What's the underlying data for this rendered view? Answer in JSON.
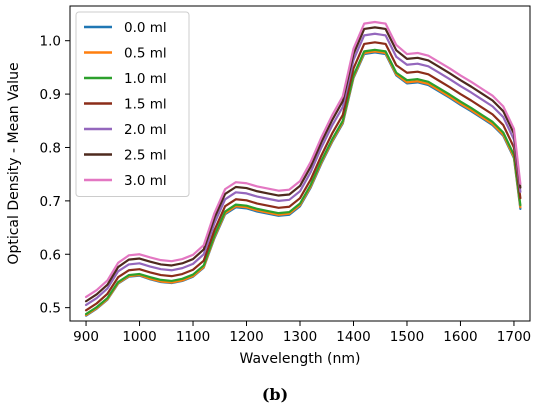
{
  "chart_data": {
    "type": "line",
    "title": "",
    "caption": "(b)",
    "xlabel": "Wavelength (nm)",
    "ylabel": "Optical Density - Mean Value",
    "xlim": [
      870,
      1730
    ],
    "ylim": [
      0.475,
      1.065
    ],
    "xticks": [
      900,
      1000,
      1100,
      1200,
      1300,
      1400,
      1500,
      1600,
      1700
    ],
    "yticks": [
      0.5,
      0.6,
      0.7,
      0.8,
      0.9,
      1.0
    ],
    "ytick_labels": [
      "0.5",
      "0.6",
      "0.7",
      "0.8",
      "0.9",
      "1.0"
    ],
    "grid": false,
    "legend_position": "top-left",
    "x": [
      900,
      920,
      940,
      960,
      980,
      1000,
      1020,
      1040,
      1060,
      1080,
      1100,
      1120,
      1140,
      1160,
      1180,
      1200,
      1220,
      1240,
      1260,
      1280,
      1300,
      1320,
      1340,
      1360,
      1380,
      1400,
      1420,
      1440,
      1460,
      1480,
      1500,
      1520,
      1540,
      1560,
      1580,
      1600,
      1620,
      1640,
      1660,
      1680,
      1700,
      1712
    ],
    "series": [
      {
        "name": "0.0 ml",
        "color": "#1f77b4",
        "values": [
          0.485,
          0.498,
          0.515,
          0.545,
          0.558,
          0.56,
          0.553,
          0.548,
          0.546,
          0.55,
          0.558,
          0.575,
          0.63,
          0.675,
          0.688,
          0.686,
          0.68,
          0.676,
          0.672,
          0.674,
          0.69,
          0.725,
          0.77,
          0.81,
          0.845,
          0.93,
          0.975,
          0.978,
          0.975,
          0.935,
          0.92,
          0.922,
          0.917,
          0.905,
          0.893,
          0.88,
          0.868,
          0.855,
          0.842,
          0.822,
          0.78,
          0.685
        ]
      },
      {
        "name": "0.5 ml",
        "color": "#ff7f0e",
        "values": [
          0.486,
          0.499,
          0.516,
          0.546,
          0.559,
          0.561,
          0.554,
          0.549,
          0.547,
          0.551,
          0.559,
          0.576,
          0.632,
          0.677,
          0.69,
          0.688,
          0.682,
          0.678,
          0.674,
          0.676,
          0.692,
          0.727,
          0.772,
          0.812,
          0.847,
          0.932,
          0.977,
          0.98,
          0.977,
          0.937,
          0.922,
          0.924,
          0.919,
          0.907,
          0.895,
          0.882,
          0.87,
          0.857,
          0.844,
          0.824,
          0.782,
          0.688
        ]
      },
      {
        "name": "1.0 ml",
        "color": "#2ca02c",
        "values": [
          0.488,
          0.501,
          0.518,
          0.548,
          0.561,
          0.563,
          0.557,
          0.552,
          0.55,
          0.554,
          0.562,
          0.579,
          0.635,
          0.68,
          0.693,
          0.691,
          0.685,
          0.681,
          0.677,
          0.679,
          0.695,
          0.73,
          0.775,
          0.815,
          0.85,
          0.935,
          0.98,
          0.983,
          0.98,
          0.94,
          0.926,
          0.928,
          0.923,
          0.911,
          0.899,
          0.886,
          0.874,
          0.861,
          0.848,
          0.828,
          0.786,
          0.692
        ]
      },
      {
        "name": "1.5 ml",
        "color": "#8c2d19",
        "values": [
          0.495,
          0.508,
          0.526,
          0.557,
          0.57,
          0.572,
          0.566,
          0.561,
          0.559,
          0.563,
          0.571,
          0.588,
          0.645,
          0.69,
          0.703,
          0.701,
          0.695,
          0.691,
          0.687,
          0.689,
          0.705,
          0.74,
          0.785,
          0.826,
          0.861,
          0.948,
          0.994,
          0.997,
          0.994,
          0.954,
          0.94,
          0.942,
          0.937,
          0.925,
          0.913,
          0.9,
          0.888,
          0.875,
          0.862,
          0.842,
          0.8,
          0.705
        ]
      },
      {
        "name": "2.0 ml",
        "color": "#9467bd",
        "values": [
          0.505,
          0.518,
          0.536,
          0.568,
          0.581,
          0.583,
          0.577,
          0.572,
          0.57,
          0.574,
          0.582,
          0.6,
          0.658,
          0.703,
          0.716,
          0.714,
          0.708,
          0.704,
          0.7,
          0.702,
          0.718,
          0.754,
          0.8,
          0.841,
          0.876,
          0.964,
          1.01,
          1.013,
          1.01,
          0.97,
          0.955,
          0.957,
          0.952,
          0.94,
          0.928,
          0.915,
          0.903,
          0.89,
          0.877,
          0.857,
          0.815,
          0.717
        ]
      },
      {
        "name": "2.5 ml",
        "color": "#4e2a1e",
        "values": [
          0.512,
          0.525,
          0.543,
          0.576,
          0.59,
          0.592,
          0.586,
          0.581,
          0.579,
          0.583,
          0.591,
          0.609,
          0.668,
          0.713,
          0.726,
          0.724,
          0.718,
          0.714,
          0.71,
          0.712,
          0.728,
          0.764,
          0.81,
          0.851,
          0.887,
          0.975,
          1.022,
          1.025,
          1.022,
          0.982,
          0.966,
          0.968,
          0.963,
          0.951,
          0.939,
          0.926,
          0.914,
          0.901,
          0.888,
          0.868,
          0.826,
          0.725
        ]
      },
      {
        "name": "3.0 ml",
        "color": "#e377c2",
        "values": [
          0.52,
          0.533,
          0.551,
          0.584,
          0.598,
          0.6,
          0.594,
          0.589,
          0.587,
          0.591,
          0.599,
          0.617,
          0.677,
          0.722,
          0.735,
          0.733,
          0.727,
          0.723,
          0.719,
          0.721,
          0.737,
          0.773,
          0.819,
          0.86,
          0.896,
          0.985,
          1.032,
          1.035,
          1.032,
          0.992,
          0.975,
          0.977,
          0.972,
          0.96,
          0.948,
          0.935,
          0.923,
          0.91,
          0.897,
          0.877,
          0.835,
          0.732
        ]
      }
    ]
  }
}
